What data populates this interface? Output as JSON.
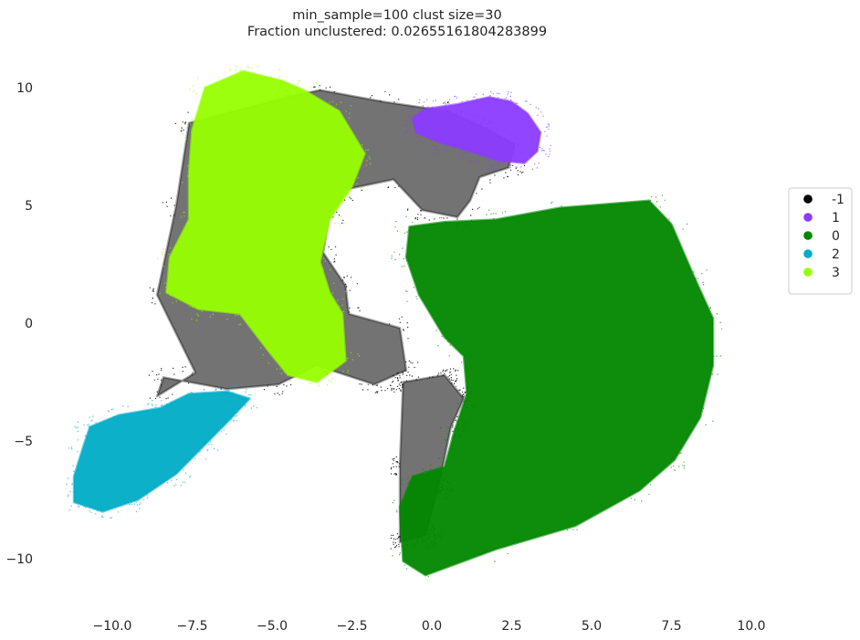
{
  "chart_data": {
    "type": "scatter",
    "title": "min_sample=100 clust size=30",
    "subtitle": "Fraction unclustered: 0.02655161804283899",
    "xlabel": "",
    "ylabel": "",
    "xlim": [
      -11.5,
      10.6
    ],
    "ylim": [
      -11.5,
      11.2
    ],
    "x_ticks": [
      -10.0,
      -7.5,
      -5.0,
      -2.5,
      0.0,
      2.5,
      5.0,
      7.5,
      10.0
    ],
    "x_tick_labels": [
      "−10.0",
      "−7.5",
      "−5.0",
      "−2.5",
      "0.0",
      "2.5",
      "5.0",
      "7.5",
      "10.0"
    ],
    "y_ticks": [
      10,
      5,
      0,
      -5,
      -10
    ],
    "y_tick_labels": [
      "10",
      "5",
      "0",
      "−5",
      "−10"
    ],
    "grid": false,
    "legend_position": "center-right",
    "series": [
      {
        "name": "-1",
        "color": "#000000",
        "marker_size": "tiny",
        "regions": [
          [
            [
              -7.6,
              8.5
            ],
            [
              -4.5,
              9.6
            ],
            [
              -3.5,
              9.9
            ],
            [
              -1.5,
              9.4
            ],
            [
              0.5,
              9.0
            ],
            [
              1.5,
              8.4
            ],
            [
              2.6,
              7.6
            ],
            [
              2.4,
              6.6
            ],
            [
              1.5,
              6.2
            ],
            [
              1.2,
              5.2
            ],
            [
              0.8,
              4.5
            ],
            [
              -0.3,
              4.8
            ],
            [
              -1.2,
              6.1
            ],
            [
              -2.6,
              5.7
            ],
            [
              -3.2,
              4.6
            ],
            [
              -3.4,
              3.0
            ],
            [
              -2.7,
              1.6
            ],
            [
              -2.6,
              0.4
            ],
            [
              -1.0,
              -0.2
            ],
            [
              -0.8,
              -2.0
            ],
            [
              -1.8,
              -2.6
            ],
            [
              -3.6,
              -1.8
            ],
            [
              -4.8,
              -2.6
            ],
            [
              -6.4,
              -2.8
            ],
            [
              -8.4,
              -2.3
            ],
            [
              -8.6,
              -3.1
            ],
            [
              -7.4,
              -2.1
            ],
            [
              -8.6,
              1.2
            ],
            [
              -8.0,
              5.0
            ]
          ],
          [
            [
              -0.9,
              -2.5
            ],
            [
              0.4,
              -2.2
            ],
            [
              1.0,
              -3.2
            ],
            [
              0.6,
              -4.4
            ],
            [
              0.2,
              -7.0
            ],
            [
              -0.2,
              -9.0
            ],
            [
              -1.0,
              -9.3
            ],
            [
              -1.0,
              -6.0
            ]
          ]
        ]
      },
      {
        "name": "1",
        "color": "#8c3bff",
        "marker_size": "tiny",
        "regions": [
          [
            [
              -0.6,
              8.7
            ],
            [
              -0.2,
              9.1
            ],
            [
              0.8,
              9.3
            ],
            [
              1.8,
              9.6
            ],
            [
              2.5,
              9.4
            ],
            [
              3.0,
              8.9
            ],
            [
              3.4,
              8.1
            ],
            [
              3.3,
              7.3
            ],
            [
              2.9,
              6.8
            ],
            [
              2.1,
              6.9
            ],
            [
              1.2,
              7.3
            ],
            [
              0.2,
              7.7
            ],
            [
              -0.5,
              8.1
            ]
          ]
        ]
      },
      {
        "name": "0",
        "color": "#018700",
        "marker_size": "tiny",
        "regions": [
          [
            [
              -0.7,
              4.1
            ],
            [
              0.4,
              4.3
            ],
            [
              2.0,
              4.4
            ],
            [
              4.0,
              4.9
            ],
            [
              6.8,
              5.2
            ],
            [
              7.5,
              4.2
            ],
            [
              8.2,
              2.0
            ],
            [
              8.8,
              0.2
            ],
            [
              8.8,
              -1.8
            ],
            [
              8.4,
              -4.0
            ],
            [
              7.6,
              -5.8
            ],
            [
              6.5,
              -7.1
            ],
            [
              4.5,
              -8.6
            ],
            [
              2.0,
              -9.6
            ],
            [
              -0.2,
              -10.7
            ],
            [
              -0.9,
              -10.1
            ],
            [
              -1.0,
              -7.8
            ],
            [
              -0.6,
              -6.5
            ],
            [
              0.4,
              -6.1
            ],
            [
              0.7,
              -4.6
            ],
            [
              1.1,
              -3.0
            ],
            [
              1.0,
              -1.4
            ],
            [
              0.4,
              -0.6
            ],
            [
              -0.4,
              1.2
            ],
            [
              -0.8,
              2.8
            ]
          ]
        ]
      },
      {
        "name": "2",
        "color": "#00acc6",
        "marker_size": "tiny",
        "regions": [
          [
            [
              -10.7,
              -4.4
            ],
            [
              -9.8,
              -3.9
            ],
            [
              -8.5,
              -3.6
            ],
            [
              -7.6,
              -3.0
            ],
            [
              -6.4,
              -2.9
            ],
            [
              -5.7,
              -3.2
            ],
            [
              -6.4,
              -4.2
            ],
            [
              -7.2,
              -5.3
            ],
            [
              -8.0,
              -6.4
            ],
            [
              -9.2,
              -7.5
            ],
            [
              -10.3,
              -8.0
            ],
            [
              -11.2,
              -7.6
            ],
            [
              -11.2,
              -6.5
            ],
            [
              -10.9,
              -5.2
            ]
          ]
        ]
      },
      {
        "name": "3",
        "color": "#97ff00",
        "marker_size": "tiny",
        "regions": [
          [
            [
              -7.1,
              10.0
            ],
            [
              -5.9,
              10.7
            ],
            [
              -4.7,
              10.3
            ],
            [
              -4.0,
              9.9
            ],
            [
              -2.9,
              9.0
            ],
            [
              -2.1,
              7.2
            ],
            [
              -2.5,
              5.8
            ],
            [
              -3.2,
              4.4
            ],
            [
              -3.5,
              2.6
            ],
            [
              -3.2,
              1.3
            ],
            [
              -2.8,
              0.4
            ],
            [
              -2.7,
              -1.6
            ],
            [
              -3.6,
              -2.5
            ],
            [
              -4.5,
              -2.2
            ],
            [
              -5.1,
              -1.2
            ],
            [
              -6.0,
              0.4
            ],
            [
              -7.3,
              0.6
            ],
            [
              -8.3,
              1.3
            ],
            [
              -8.2,
              2.8
            ],
            [
              -7.6,
              4.4
            ],
            [
              -7.6,
              6.4
            ],
            [
              -7.5,
              8.2
            ]
          ]
        ]
      }
    ]
  }
}
